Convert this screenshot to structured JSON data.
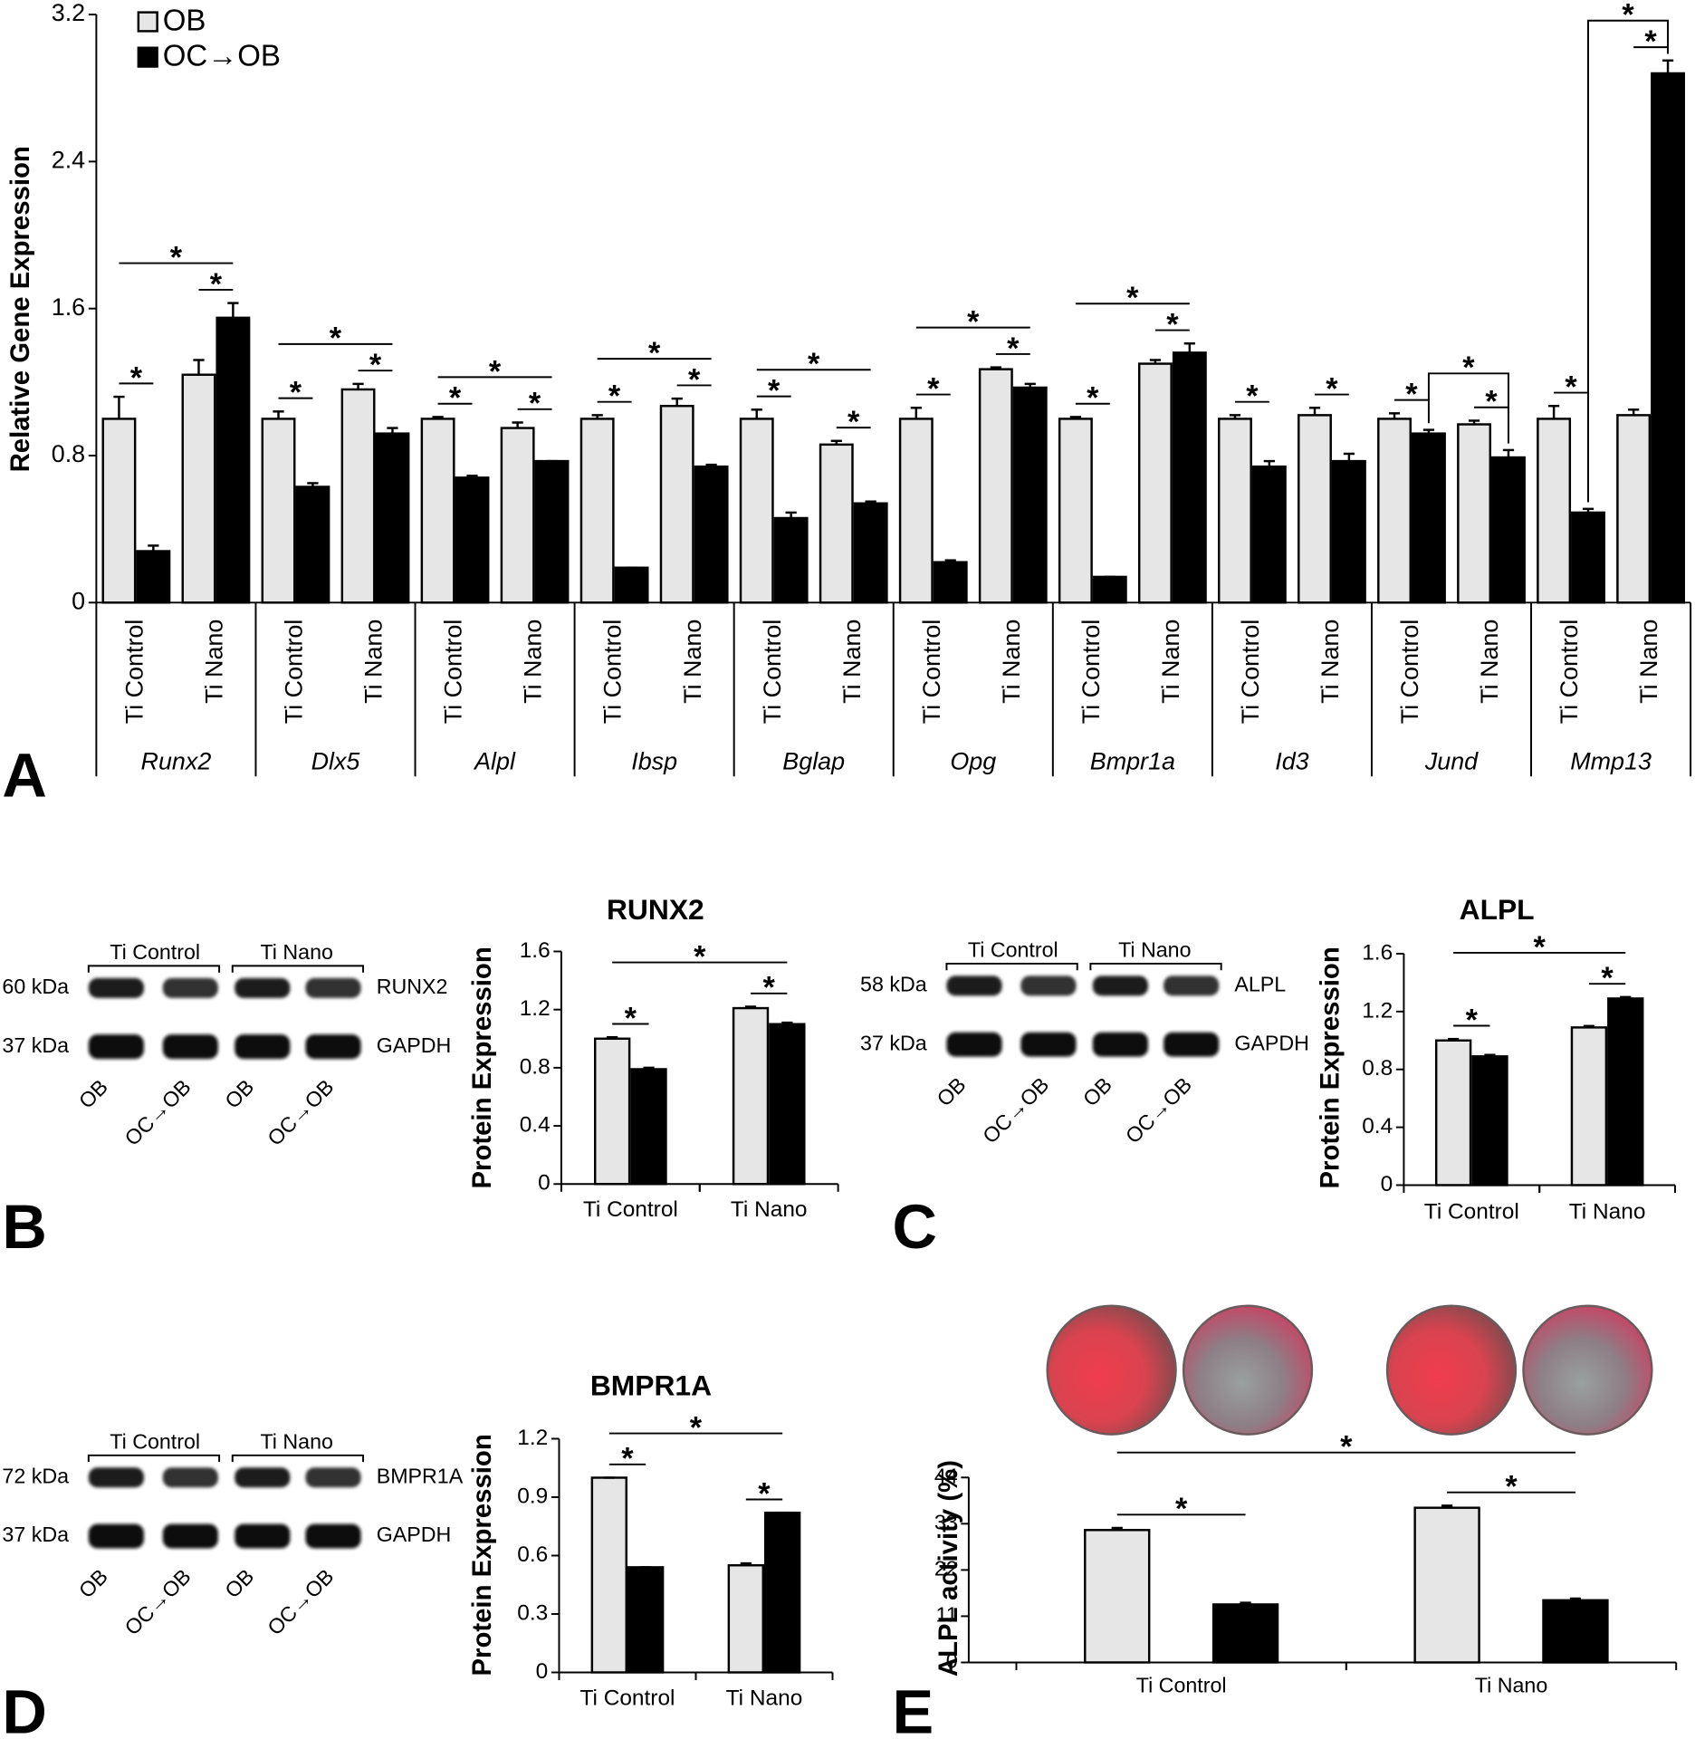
{
  "panels": [
    "A",
    "B",
    "C",
    "D",
    "E"
  ],
  "blots": [
    {
      "headers": [
        "Ti Control",
        "Ti Nano"
      ],
      "rows": [
        {
          "size": "60 kDa",
          "protein": "RUNX2"
        },
        {
          "size": "37 kDa",
          "protein": "GAPDH"
        }
      ],
      "lanes": [
        "OB",
        "OC→OB",
        "OB",
        "OC→OB"
      ]
    },
    {
      "headers": [
        "Ti Control",
        "Ti Nano"
      ],
      "rows": [
        {
          "size": "58 kDa",
          "protein": "ALPL"
        },
        {
          "size": "37 kDa",
          "protein": "GAPDH"
        }
      ],
      "lanes": [
        "OB",
        "OC→OB",
        "OB",
        "OC→OB"
      ]
    },
    {
      "headers": [
        "Ti Control",
        "Ti Nano"
      ],
      "rows": [
        {
          "size": "72 kDa",
          "protein": "BMPR1A"
        },
        {
          "size": "37 kDa",
          "protein": "GAPDH"
        }
      ],
      "lanes": [
        "OB",
        "OC→OB",
        "OB",
        "OC→OB"
      ]
    }
  ],
  "chart_data": [
    {
      "type": "bar",
      "ylabel": "Relative Gene Expression",
      "legend": "upper left",
      "groups": [
        "Runx2",
        "Dlx5",
        "Alpl",
        "Ibsp",
        "Bglap",
        "Opg",
        "Bmpr1a",
        "Id3",
        "Jund",
        "Mmp13"
      ],
      "categories": [
        "Ti Control",
        "Ti Nano",
        "Ti Control",
        "Ti Nano",
        "Ti Control",
        "Ti Nano",
        "Ti Control",
        "Ti Nano",
        "Ti Control",
        "Ti Nano",
        "Ti Control",
        "Ti Nano",
        "Ti Control",
        "Ti Nano",
        "Ti Control",
        "Ti Nano",
        "Ti Control",
        "Ti Nano",
        "Ti Control",
        "Ti Nano"
      ],
      "series": [
        {
          "name": "OB",
          "color": "#e6e6e6",
          "values": [
            1.0,
            1.24,
            1.0,
            1.16,
            1.0,
            0.95,
            1.0,
            1.07,
            1.0,
            0.86,
            1.0,
            1.27,
            1.0,
            1.3,
            1.0,
            1.02,
            1.0,
            0.97,
            1.0,
            1.02
          ],
          "errors": [
            0.12,
            0.08,
            0.04,
            0.03,
            0.01,
            0.03,
            0.02,
            0.04,
            0.05,
            0.02,
            0.06,
            0.01,
            0.01,
            0.02,
            0.02,
            0.04,
            0.03,
            0.02,
            0.07,
            0.03
          ]
        },
        {
          "name": "OC→OB",
          "color": "#000000",
          "values": [
            0.28,
            1.55,
            0.63,
            0.92,
            0.68,
            0.77,
            0.19,
            0.74,
            0.46,
            0.54,
            0.22,
            1.17,
            0.14,
            1.36,
            0.74,
            0.77,
            0.92,
            0.79,
            0.49,
            2.88
          ],
          "errors": [
            0.03,
            0.08,
            0.02,
            0.03,
            0.01,
            0.0,
            0.0,
            0.01,
            0.03,
            0.01,
            0.01,
            0.02,
            0.0,
            0.05,
            0.03,
            0.04,
            0.02,
            0.04,
            0.02,
            0.07
          ]
        }
      ],
      "comparisons": [
        {
          "label": "*",
          "a": [
            0,
            0
          ],
          "b": [
            1,
            0
          ]
        },
        {
          "label": "*",
          "a": [
            0,
            1
          ],
          "b": [
            1,
            1
          ]
        },
        {
          "label": "*",
          "a": [
            0,
            0
          ],
          "b": [
            1,
            1
          ]
        },
        {
          "label": "*",
          "a": [
            0,
            2
          ],
          "b": [
            1,
            2
          ]
        },
        {
          "label": "*",
          "a": [
            0,
            3
          ],
          "b": [
            1,
            3
          ]
        },
        {
          "label": "*",
          "a": [
            0,
            2
          ],
          "b": [
            1,
            3
          ]
        },
        {
          "label": "*",
          "a": [
            0,
            4
          ],
          "b": [
            1,
            4
          ]
        },
        {
          "label": "*",
          "a": [
            0,
            5
          ],
          "b": [
            1,
            5
          ]
        },
        {
          "label": "*",
          "a": [
            0,
            4
          ],
          "b": [
            1,
            5
          ]
        },
        {
          "label": "*",
          "a": [
            0,
            6
          ],
          "b": [
            1,
            6
          ]
        },
        {
          "label": "*",
          "a": [
            0,
            7
          ],
          "b": [
            1,
            7
          ]
        },
        {
          "label": "*",
          "a": [
            0,
            6
          ],
          "b": [
            1,
            7
          ]
        },
        {
          "label": "*",
          "a": [
            0,
            8
          ],
          "b": [
            1,
            8
          ]
        },
        {
          "label": "*",
          "a": [
            0,
            9
          ],
          "b": [
            1,
            9
          ]
        },
        {
          "label": "*",
          "a": [
            0,
            8
          ],
          "b": [
            1,
            9
          ]
        },
        {
          "label": "*",
          "a": [
            0,
            10
          ],
          "b": [
            1,
            10
          ]
        },
        {
          "label": "*",
          "a": [
            0,
            11
          ],
          "b": [
            1,
            11
          ]
        },
        {
          "label": "*",
          "a": [
            0,
            10
          ],
          "b": [
            1,
            11
          ]
        },
        {
          "label": "*",
          "a": [
            0,
            12
          ],
          "b": [
            1,
            12
          ]
        },
        {
          "label": "*",
          "a": [
            0,
            13
          ],
          "b": [
            1,
            13
          ]
        },
        {
          "label": "*",
          "a": [
            0,
            12
          ],
          "b": [
            1,
            13
          ]
        },
        {
          "label": "*",
          "a": [
            0,
            14
          ],
          "b": [
            1,
            14
          ]
        },
        {
          "label": "*",
          "a": [
            0,
            15
          ],
          "b": [
            1,
            15
          ]
        },
        {
          "label": "*",
          "a": [
            0,
            16
          ],
          "b": [
            1,
            16
          ]
        },
        {
          "label": "*",
          "a": [
            0,
            17
          ],
          "b": [
            1,
            17
          ]
        },
        {
          "label": "*",
          "a": [
            1,
            16
          ],
          "b": [
            1,
            17
          ]
        },
        {
          "label": "*",
          "a": [
            0,
            18
          ],
          "b": [
            1,
            18
          ]
        },
        {
          "label": "*",
          "a": [
            0,
            19
          ],
          "b": [
            1,
            19
          ]
        },
        {
          "label": "*",
          "a": [
            1,
            18
          ],
          "b": [
            1,
            19
          ]
        }
      ],
      "ylim": [
        0,
        3.2
      ],
      "yticks": [
        0,
        0.8,
        1.6,
        2.4,
        3.2
      ]
    },
    {
      "type": "bar",
      "title": "RUNX2",
      "ylabel": "Protein Expression",
      "categories": [
        "Ti Control",
        "Ti Nano"
      ],
      "series": [
        {
          "color": "#e6e6e6",
          "values": [
            1.0,
            1.21
          ],
          "errors": [
            0.01,
            0.01
          ]
        },
        {
          "color": "#000000",
          "values": [
            0.79,
            1.1
          ],
          "errors": [
            0.01,
            0.01
          ]
        }
      ],
      "comparisons": [
        {
          "label": "*",
          "a": [
            0,
            0
          ],
          "b": [
            1,
            0
          ]
        },
        {
          "label": "*",
          "a": [
            0,
            1
          ],
          "b": [
            1,
            1
          ]
        },
        {
          "label": "*",
          "a": [
            0,
            0
          ],
          "b": [
            1,
            1
          ]
        }
      ],
      "ylim": [
        0,
        1.6
      ],
      "yticks": [
        0,
        0.4,
        0.8,
        1.2,
        1.6
      ]
    },
    {
      "type": "bar",
      "title": "ALPL",
      "ylabel": "Protein Expression",
      "categories": [
        "Ti Control",
        "Ti Nano"
      ],
      "series": [
        {
          "color": "#e6e6e6",
          "values": [
            1.0,
            1.09
          ],
          "errors": [
            0.01,
            0.01
          ]
        },
        {
          "color": "#000000",
          "values": [
            0.89,
            1.29
          ],
          "errors": [
            0.01,
            0.01
          ]
        }
      ],
      "comparisons": [
        {
          "label": "*",
          "a": [
            0,
            0
          ],
          "b": [
            1,
            0
          ]
        },
        {
          "label": "*",
          "a": [
            0,
            1
          ],
          "b": [
            1,
            1
          ]
        },
        {
          "label": "*",
          "a": [
            0,
            0
          ],
          "b": [
            1,
            1
          ]
        }
      ],
      "ylim": [
        0,
        1.6
      ],
      "yticks": [
        0,
        0.4,
        0.8,
        1.2,
        1.6
      ]
    },
    {
      "type": "bar",
      "title": "BMPR1A",
      "ylabel": "Protein Expression",
      "categories": [
        "Ti Control",
        "Ti Nano"
      ],
      "series": [
        {
          "color": "#e6e6e6",
          "values": [
            1.0,
            0.55
          ],
          "errors": [
            0.0,
            0.01
          ]
        },
        {
          "color": "#000000",
          "values": [
            0.54,
            0.82
          ],
          "errors": [
            0.0,
            0.0
          ]
        }
      ],
      "comparisons": [
        {
          "label": "*",
          "a": [
            0,
            0
          ],
          "b": [
            1,
            0
          ]
        },
        {
          "label": "*",
          "a": [
            0,
            1
          ],
          "b": [
            1,
            1
          ]
        },
        {
          "label": "*",
          "a": [
            0,
            0
          ],
          "b": [
            1,
            1
          ]
        }
      ],
      "ylim": [
        0,
        1.2
      ],
      "yticks": [
        0,
        0.3,
        0.6,
        0.9,
        1.2
      ]
    },
    {
      "type": "bar",
      "ylabel": "ALPL activity (%)",
      "categories": [
        "Ti Control",
        "Ti Nano"
      ],
      "series": [
        {
          "color": "#e6e6e6",
          "values": [
            31.5,
            36.8
          ],
          "errors": [
            0.5,
            0.5
          ]
        },
        {
          "color": "#000000",
          "values": [
            13.8,
            14.8
          ],
          "errors": [
            0.4,
            0.4
          ]
        }
      ],
      "comparisons": [
        {
          "label": "*",
          "a": [
            0,
            0
          ],
          "b": [
            1,
            0
          ]
        },
        {
          "label": "*",
          "a": [
            0,
            1
          ],
          "b": [
            1,
            1
          ]
        },
        {
          "label": "*",
          "a": [
            0,
            0
          ],
          "b": [
            1,
            1
          ]
        }
      ],
      "ylim": [
        0,
        44
      ],
      "yticks": [
        0,
        11,
        22,
        33,
        44
      ]
    }
  ]
}
